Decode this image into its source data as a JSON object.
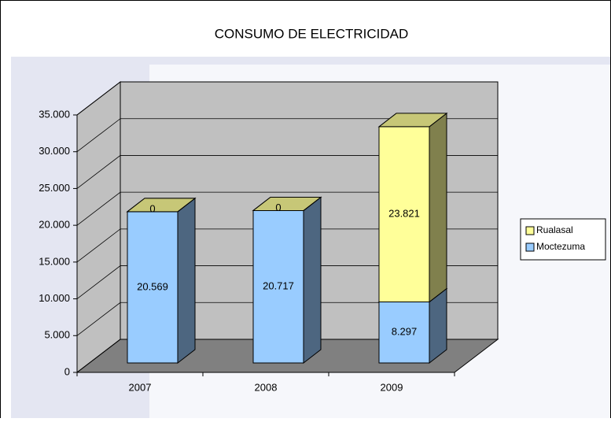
{
  "chart_data": {
    "type": "bar3d_stacked",
    "title": "CONSUMO DE ELECTRICIDAD",
    "categories": [
      "2007",
      "2008",
      "2009"
    ],
    "series": [
      {
        "name": "Moctezuma",
        "color": "#99ccff",
        "values": [
          20569,
          20717,
          8297
        ],
        "value_labels": [
          "20.569",
          "20.717",
          "8.297"
        ]
      },
      {
        "name": "Rualasal",
        "color": "#ffff99",
        "values": [
          0,
          0,
          23821
        ],
        "value_labels": [
          "0",
          "0",
          "23.821"
        ]
      }
    ],
    "ylim": [
      0,
      35000
    ],
    "yticks": [
      0,
      {
        "value": 5000,
        "label": "5.000"
      },
      {
        "value": 10000,
        "label": "10.000"
      },
      {
        "value": 15000,
        "label": "15.000"
      },
      {
        "value": 20000,
        "label": "20.000"
      },
      {
        "value": 25000,
        "label": "25.000"
      },
      {
        "value": 30000,
        "label": "30.000"
      },
      {
        "value": 35000,
        "label": "35.000"
      }
    ],
    "grid": true,
    "legend": "right"
  }
}
